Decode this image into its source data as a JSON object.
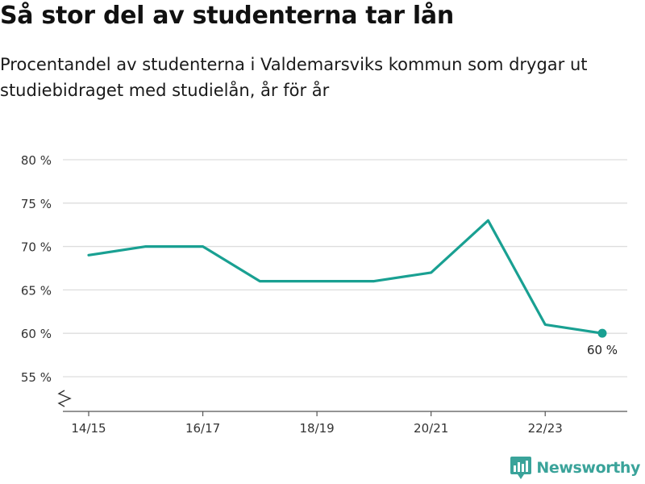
{
  "title": "Så stor del av studenterna tar lån",
  "subtitle": "Procentandel av studenterna i Valdemarsviks kommun som drygar ut studiebidraget med studielån, år för år",
  "brand": {
    "name": "Newsworthy",
    "color": "#3aa39a"
  },
  "colors": {
    "line": "#19a092",
    "grid": "#dddddd",
    "axis": "#555555",
    "text": "#333333"
  },
  "chart_data": {
    "type": "line",
    "x": [
      "14/15",
      "15/16",
      "16/17",
      "17/18",
      "18/19",
      "19/20",
      "20/21",
      "21/22",
      "22/23",
      "23/24"
    ],
    "x_tick_labels": [
      "14/15",
      "16/17",
      "18/19",
      "20/21",
      "22/23"
    ],
    "series": [
      {
        "values": [
          69,
          70,
          70,
          66,
          66,
          66,
          67,
          73,
          61,
          60
        ]
      }
    ],
    "y_ticks": [
      55,
      60,
      65,
      70,
      75,
      80
    ],
    "y_tick_labels": [
      "55 %",
      "60 %",
      "65 %",
      "70 %",
      "75 %",
      "80 %"
    ],
    "ylim": [
      51,
      80
    ],
    "axis_break": true,
    "end_label": "60 %",
    "grid": true
  }
}
